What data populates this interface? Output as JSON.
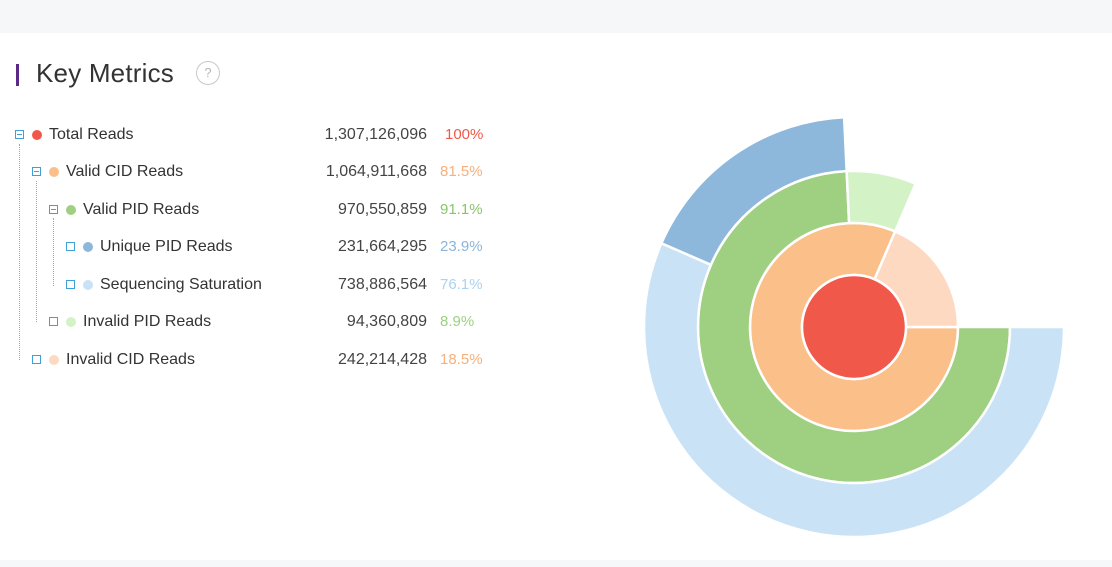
{
  "header": {
    "title": "Key Metrics",
    "help_glyph": "?"
  },
  "colors": {
    "total": "#f0584a",
    "valid_cid": "#fbbf8a",
    "valid_pid": "#9fcf80",
    "unique_pid": "#8eb7dc",
    "seq_sat": "#c9e2f6",
    "invalid_pid": "#d3f3c6",
    "invalid_cid": "#fdd9c1",
    "pct_total": "#f0584a",
    "pct_valid_cid": "#f7b07a",
    "pct_valid_pid": "#8bc46c",
    "pct_unique": "#8cb4d8",
    "pct_seq": "#a9d3f2",
    "pct_invalid_pid": "#9ad37f",
    "pct_invalid_cid": "#f7b07a"
  },
  "chart_data": {
    "type": "sunburst",
    "rows": [
      {
        "label": "Total Reads",
        "value": "1,307,126,096",
        "percent": "100%"
      },
      {
        "label": "Valid CID Reads",
        "value": "1,064,911,668",
        "percent": "81.5%"
      },
      {
        "label": "Valid PID Reads",
        "value": "970,550,859",
        "percent": "91.1%"
      },
      {
        "label": "Unique PID Reads",
        "value": "231,664,295",
        "percent": "23.9%"
      },
      {
        "label": "Sequencing Saturation",
        "value": "738,886,564",
        "percent": "76.1%"
      },
      {
        "label": "Invalid PID Reads",
        "value": "94,360,809",
        "percent": "8.9%"
      },
      {
        "label": "Invalid CID Reads",
        "value": "242,214,428",
        "percent": "18.5%"
      }
    ],
    "rings": [
      {
        "level": 0,
        "segments": [
          {
            "name": "Total Reads",
            "value": 1307126096
          }
        ]
      },
      {
        "level": 1,
        "segments": [
          {
            "name": "Valid CID Reads",
            "value": 1064911668
          },
          {
            "name": "Invalid CID Reads",
            "value": 242214428
          }
        ]
      },
      {
        "level": 2,
        "segments": [
          {
            "name": "Valid PID Reads",
            "value": 970550859
          },
          {
            "name": "Invalid PID Reads",
            "value": 94360809
          }
        ]
      },
      {
        "level": 3,
        "segments": [
          {
            "name": "Sequencing Saturation",
            "value": 738886564
          },
          {
            "name": "Unique PID Reads",
            "value": 231664295
          }
        ]
      }
    ]
  }
}
